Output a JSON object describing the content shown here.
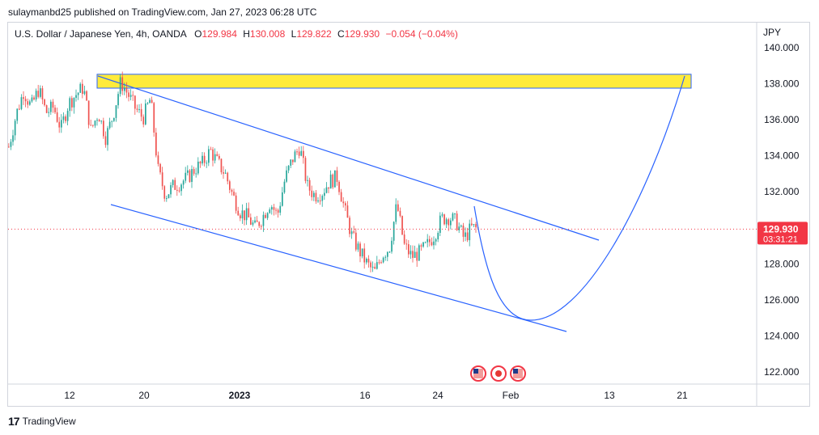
{
  "publisher_line": "sulaymanbd25 published on TradingView.com, Jan 27, 2023 06:28 UTC",
  "legend": {
    "symbol": "U.S. Dollar / Japanese Yen, 4h, OANDA",
    "open_label": "O",
    "open": "129.984",
    "high_label": "H",
    "high": "130.008",
    "low_label": "L",
    "low": "129.822",
    "close_label": "C",
    "close": "129.930",
    "change": "−0.054 (−0.04%)"
  },
  "footer": {
    "brand": "TradingView",
    "logo": "17"
  },
  "colors": {
    "up": "#26a69a",
    "down": "#ef5350",
    "trend": "#2962ff",
    "zone_fill": "#ffeb3b",
    "price_tag": "#f23645"
  },
  "chart_data": {
    "type": "candlestick",
    "currency_label": "JPY",
    "ylim": [
      121,
      141.5
    ],
    "y_ticks": [
      "140.000",
      "138.000",
      "136.000",
      "134.000",
      "132.000",
      "128.000",
      "126.000",
      "124.000",
      "122.000"
    ],
    "x_ticks": [
      "12",
      "20",
      "2023",
      "16",
      "24",
      "Feb",
      "13",
      "21"
    ],
    "last_price": "129.930",
    "countdown": "03:31:21",
    "resistance_zone": [
      137.8,
      138.3
    ],
    "price_path": [
      [
        "Dec 6",
        134.5
      ],
      [
        "Dec 7",
        136.3
      ],
      [
        "Dec 8",
        137.6
      ],
      [
        "Dec 9",
        136.7
      ],
      [
        "Dec 10",
        137.7
      ],
      [
        "Dec 11",
        136.4
      ],
      [
        "Dec 12",
        136.7
      ],
      [
        "Dec 13",
        135.5
      ],
      [
        "Dec 13b",
        136.9
      ],
      [
        "Dec 14",
        137.4
      ],
      [
        "Dec 15",
        137.8
      ],
      [
        "Dec 15b",
        135.4
      ],
      [
        "Dec 16",
        136.4
      ],
      [
        "Dec 16b",
        135.0
      ],
      [
        "Dec 17",
        136.3
      ],
      [
        "Dec 18",
        138.1
      ],
      [
        "Dec 18b",
        137.4
      ],
      [
        "Dec 19",
        136.6
      ],
      [
        "Dec 19b",
        136.1
      ],
      [
        "Dec 20",
        137.2
      ],
      [
        "Dec 20b",
        133.2
      ],
      [
        "Dec 21",
        131.8
      ],
      [
        "Dec 22",
        132.3
      ],
      [
        "Dec 23",
        132.5
      ],
      [
        "Dec 24",
        132.8
      ],
      [
        "Dec 25",
        133.3
      ],
      [
        "Dec 26",
        133.6
      ],
      [
        "Dec 27",
        134.3
      ],
      [
        "Dec 28",
        133.6
      ],
      [
        "Dec 29",
        133.0
      ],
      [
        "Dec 30",
        131.8
      ],
      [
        "Dec 31",
        130.9
      ],
      [
        "Jan 1",
        130.6
      ],
      [
        "Jan 2",
        130.0
      ],
      [
        "Jan 3",
        130.6
      ],
      [
        "Jan 3b",
        131.4
      ],
      [
        "Jan 4",
        130.7
      ],
      [
        "Jan 5",
        132.7
      ],
      [
        "Jan 6",
        133.8
      ],
      [
        "Jan 6b",
        134.5
      ],
      [
        "Jan 7",
        132.3
      ],
      [
        "Jan 8",
        131.8
      ],
      [
        "Jan 9",
        132.0
      ],
      [
        "Jan 10",
        132.6
      ],
      [
        "Jan 11",
        132.8
      ],
      [
        "Jan 12",
        131.0
      ],
      [
        "Jan 13",
        129.5
      ],
      [
        "Jan 14",
        128.7
      ],
      [
        "Jan 15",
        128.0
      ],
      [
        "Jan 16",
        127.5
      ],
      [
        "Jan 17",
        128.5
      ],
      [
        "Jan 18",
        128.9
      ],
      [
        "Jan 18b",
        131.3
      ],
      [
        "Jan 18c",
        129.0
      ],
      [
        "Jan 19",
        128.4
      ],
      [
        "Jan 20",
        128.6
      ],
      [
        "Jan 21",
        129.0
      ],
      [
        "Jan 22",
        129.6
      ],
      [
        "Jan 23",
        130.5
      ],
      [
        "Jan 24",
        130.6
      ],
      [
        "Jan 25",
        130.3
      ],
      [
        "Jan 25b",
        129.4
      ],
      [
        "Jan 26",
        130.0
      ],
      [
        "Jan 27",
        129.93
      ]
    ],
    "projection": [
      [
        129.93
      ],
      [
        130.8
      ],
      [
        127.0
      ],
      [
        124.8
      ],
      [
        126.0
      ],
      [
        131.0
      ],
      [
        138.3
      ]
    ]
  }
}
